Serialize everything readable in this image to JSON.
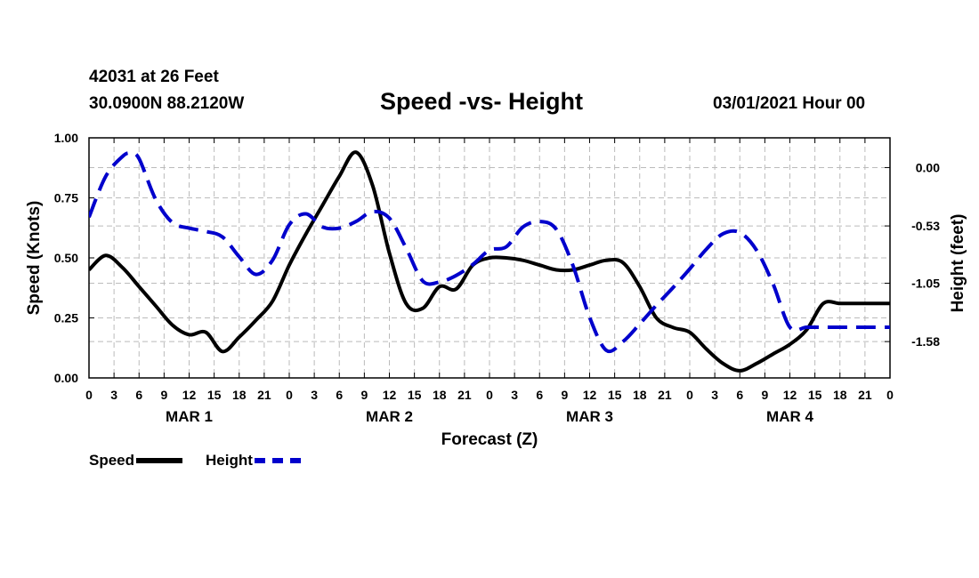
{
  "header": {
    "station": "42031 at 26 Feet",
    "coords": "30.0900N 88.2120W",
    "title": "Speed -vs- Height",
    "datetime": "03/01/2021 Hour 00"
  },
  "legend": {
    "speed_label": "Speed",
    "height_label": "Height"
  },
  "colors": {
    "speed": "#000000",
    "height": "#0000cc",
    "grid": "#bbbbbb"
  },
  "chart_data": {
    "type": "line",
    "title": "Speed -vs- Height",
    "xlabel": "Forecast (Z)",
    "ylabel": "Speed (Knots)",
    "y2label": "Height (feet)",
    "xlim": [
      0,
      96
    ],
    "ylim": [
      0,
      1
    ],
    "y2lim": [
      -1.91,
      0.27
    ],
    "grid": true,
    "x_tick_labels": [
      "0",
      "3",
      "6",
      "9",
      "12",
      "15",
      "18",
      "21",
      "0",
      "3",
      "6",
      "9",
      "12",
      "15",
      "18",
      "21",
      "0",
      "3",
      "6",
      "9",
      "12",
      "15",
      "18",
      "21",
      "0",
      "3",
      "6",
      "9",
      "12",
      "15",
      "18",
      "21",
      "0"
    ],
    "day_labels": [
      "MAR 1",
      "MAR 2",
      "MAR 3",
      "MAR 4"
    ],
    "y_ticks": [
      {
        "value": 0,
        "label": "0.00"
      },
      {
        "value": 0.25,
        "label": "0.25"
      },
      {
        "value": 0.5,
        "label": "0.50"
      },
      {
        "value": 0.75,
        "label": "0.75"
      },
      {
        "value": 1,
        "label": "1.00"
      }
    ],
    "y2_ticks": [
      {
        "value": 0.0,
        "label": "0.00"
      },
      {
        "value": -0.53,
        "label": "-0.53"
      },
      {
        "value": -1.05,
        "label": "-1.05"
      },
      {
        "value": -1.58,
        "label": "-1.58"
      }
    ],
    "series": [
      {
        "name": "Speed",
        "axis": "left",
        "style": "solid",
        "x": [
          0,
          2,
          4,
          6,
          8,
          10,
          12,
          14,
          16,
          18,
          20,
          22,
          24,
          26,
          28,
          30,
          32,
          34,
          36,
          38,
          40,
          42,
          44,
          46,
          48,
          50,
          52,
          54,
          56,
          58,
          60,
          62,
          64,
          66,
          68,
          70,
          72,
          74,
          76,
          78,
          80,
          82,
          84,
          86,
          88,
          90,
          92,
          94,
          96
        ],
        "y": [
          0.45,
          0.51,
          0.46,
          0.38,
          0.3,
          0.22,
          0.18,
          0.19,
          0.11,
          0.17,
          0.24,
          0.32,
          0.47,
          0.6,
          0.72,
          0.84,
          0.94,
          0.8,
          0.52,
          0.31,
          0.29,
          0.38,
          0.37,
          0.47,
          0.5,
          0.5,
          0.49,
          0.47,
          0.45,
          0.45,
          0.47,
          0.49,
          0.48,
          0.38,
          0.25,
          0.21,
          0.19,
          0.12,
          0.06,
          0.03,
          0.06,
          0.1,
          0.14,
          0.2,
          0.31,
          0.31,
          0.31,
          0.31,
          0.31
        ]
      },
      {
        "name": "Height",
        "axis": "right",
        "style": "dashed",
        "x": [
          0,
          2,
          4,
          5,
          6,
          8,
          10,
          12,
          14,
          16,
          18,
          20,
          22,
          24,
          26,
          28,
          30,
          32,
          34,
          36,
          38,
          40,
          42,
          44,
          46,
          48,
          50,
          52,
          54,
          56,
          58,
          60,
          62,
          64,
          66,
          68,
          70,
          72,
          74,
          76,
          78,
          80,
          82,
          84,
          86,
          88,
          90,
          92,
          94,
          96
        ],
        "y": [
          -0.45,
          -0.08,
          0.1,
          0.13,
          0.08,
          -0.29,
          -0.5,
          -0.55,
          -0.58,
          -0.63,
          -0.81,
          -0.97,
          -0.84,
          -0.52,
          -0.42,
          -0.54,
          -0.55,
          -0.49,
          -0.4,
          -0.46,
          -0.73,
          -1.03,
          -1.04,
          -0.98,
          -0.88,
          -0.75,
          -0.72,
          -0.54,
          -0.49,
          -0.56,
          -0.89,
          -1.36,
          -1.66,
          -1.58,
          -1.42,
          -1.25,
          -1.09,
          -0.92,
          -0.74,
          -0.6,
          -0.59,
          -0.75,
          -1.06,
          -1.45,
          -1.45,
          -1.45,
          -1.45,
          -1.45,
          -1.45,
          -1.45
        ]
      }
    ]
  }
}
